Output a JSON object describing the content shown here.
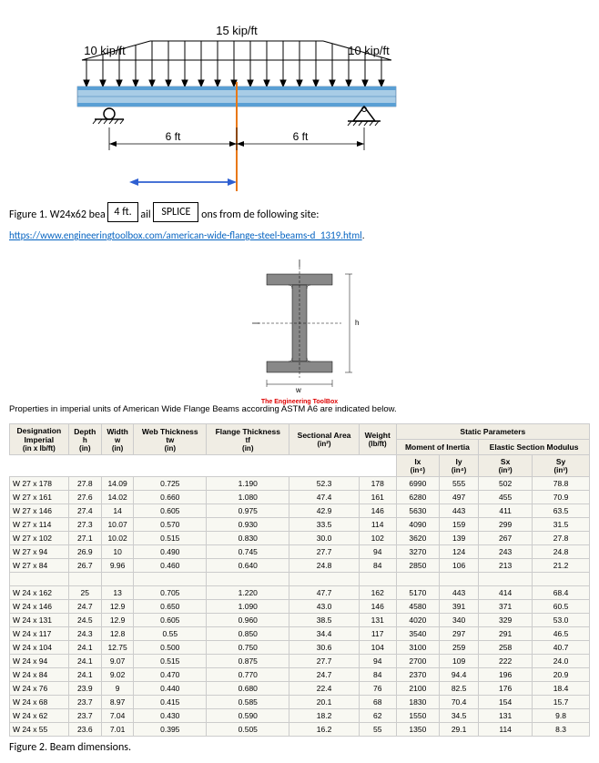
{
  "diagram": {
    "top_load": "15 kip/ft",
    "left_load": "10 kip/ft",
    "right_load": "10 kip/ft",
    "left_span": "6 ft",
    "right_span": "6 ft",
    "splice_dim": "4 ft.",
    "splice_label": "SPLICE",
    "beam_color_light": "#a8cce6",
    "beam_color_dark": "#5a9fd4"
  },
  "figure1": {
    "text_pre": "Figure 1. W24x62 bea",
    "text_mid": "ail",
    "text_post": "ons from de following site:"
  },
  "link": "https://www.engineeringtoolbox.com/american-wide-flange-steel-beams-d_1319.html",
  "ibeam_credit": "The Engineering ToolBox",
  "properties_note": "Properties in imperial units of American Wide Flange Beams according ASTM A6 are indicated below.",
  "table": {
    "headers": {
      "designation": "Designation",
      "imperial": "Imperial",
      "imperial_unit": "(in x lb/ft)",
      "depth": "Depth",
      "depth_sym": "h",
      "depth_unit": "(in)",
      "width": "Width",
      "width_sym": "w",
      "width_unit": "(in)",
      "web_thickness": "Web Thickness",
      "web_sym": "tw",
      "web_unit": "(in)",
      "flange_thickness": "Flange Thickness",
      "flange_sym": "tf",
      "flange_unit": "(in)",
      "sectional_area": "Sectional Area",
      "area_unit": "(in²)",
      "weight": "Weight",
      "weight_unit": "(lb/ft)",
      "static": "Static Parameters",
      "moment": "Moment of Inertia",
      "modulus": "Elastic Section Modulus",
      "ix": "Ix",
      "ix_unit": "(in⁴)",
      "iy": "Iy",
      "iy_unit": "(in⁴)",
      "sx": "Sx",
      "sx_unit": "(in³)",
      "sy": "Sy",
      "sy_unit": "(in³)"
    },
    "rows_group1": [
      [
        "W 27 x 178",
        "27.8",
        "14.09",
        "0.725",
        "1.190",
        "52.3",
        "178",
        "6990",
        "555",
        "502",
        "78.8"
      ],
      [
        "W 27 x 161",
        "27.6",
        "14.02",
        "0.660",
        "1.080",
        "47.4",
        "161",
        "6280",
        "497",
        "455",
        "70.9"
      ],
      [
        "W 27 x 146",
        "27.4",
        "14",
        "0.605",
        "0.975",
        "42.9",
        "146",
        "5630",
        "443",
        "411",
        "63.5"
      ],
      [
        "W 27 x 114",
        "27.3",
        "10.07",
        "0.570",
        "0.930",
        "33.5",
        "114",
        "4090",
        "159",
        "299",
        "31.5"
      ],
      [
        "W 27 x 102",
        "27.1",
        "10.02",
        "0.515",
        "0.830",
        "30.0",
        "102",
        "3620",
        "139",
        "267",
        "27.8"
      ],
      [
        "W 27 x 94",
        "26.9",
        "10",
        "0.490",
        "0.745",
        "27.7",
        "94",
        "3270",
        "124",
        "243",
        "24.8"
      ],
      [
        "W 27 x 84",
        "26.7",
        "9.96",
        "0.460",
        "0.640",
        "24.8",
        "84",
        "2850",
        "106",
        "213",
        "21.2"
      ]
    ],
    "rows_group2": [
      [
        "W 24 x 162",
        "25",
        "13",
        "0.705",
        "1.220",
        "47.7",
        "162",
        "5170",
        "443",
        "414",
        "68.4"
      ],
      [
        "W 24 x 146",
        "24.7",
        "12.9",
        "0.650",
        "1.090",
        "43.0",
        "146",
        "4580",
        "391",
        "371",
        "60.5"
      ],
      [
        "W 24 x 131",
        "24.5",
        "12.9",
        "0.605",
        "0.960",
        "38.5",
        "131",
        "4020",
        "340",
        "329",
        "53.0"
      ],
      [
        "W 24 x 117",
        "24.3",
        "12.8",
        "0.55",
        "0.850",
        "34.4",
        "117",
        "3540",
        "297",
        "291",
        "46.5"
      ],
      [
        "W 24 x 104",
        "24.1",
        "12.75",
        "0.500",
        "0.750",
        "30.6",
        "104",
        "3100",
        "259",
        "258",
        "40.7"
      ],
      [
        "W 24 x 94",
        "24.1",
        "9.07",
        "0.515",
        "0.875",
        "27.7",
        "94",
        "2700",
        "109",
        "222",
        "24.0"
      ],
      [
        "W 24 x 84",
        "24.1",
        "9.02",
        "0.470",
        "0.770",
        "24.7",
        "84",
        "2370",
        "94.4",
        "196",
        "20.9"
      ],
      [
        "W 24 x 76",
        "23.9",
        "9",
        "0.440",
        "0.680",
        "22.4",
        "76",
        "2100",
        "82.5",
        "176",
        "18.4"
      ],
      [
        "W 24 x 68",
        "23.7",
        "8.97",
        "0.415",
        "0.585",
        "20.1",
        "68",
        "1830",
        "70.4",
        "154",
        "15.7"
      ],
      [
        "W 24 x 62",
        "23.7",
        "7.04",
        "0.430",
        "0.590",
        "18.2",
        "62",
        "1550",
        "34.5",
        "131",
        "9.8"
      ],
      [
        "W 24 x 55",
        "23.6",
        "7.01",
        "0.395",
        "0.505",
        "16.2",
        "55",
        "1350",
        "29.1",
        "114",
        "8.3"
      ]
    ]
  },
  "figure2": "Figure 2. Beam dimensions."
}
